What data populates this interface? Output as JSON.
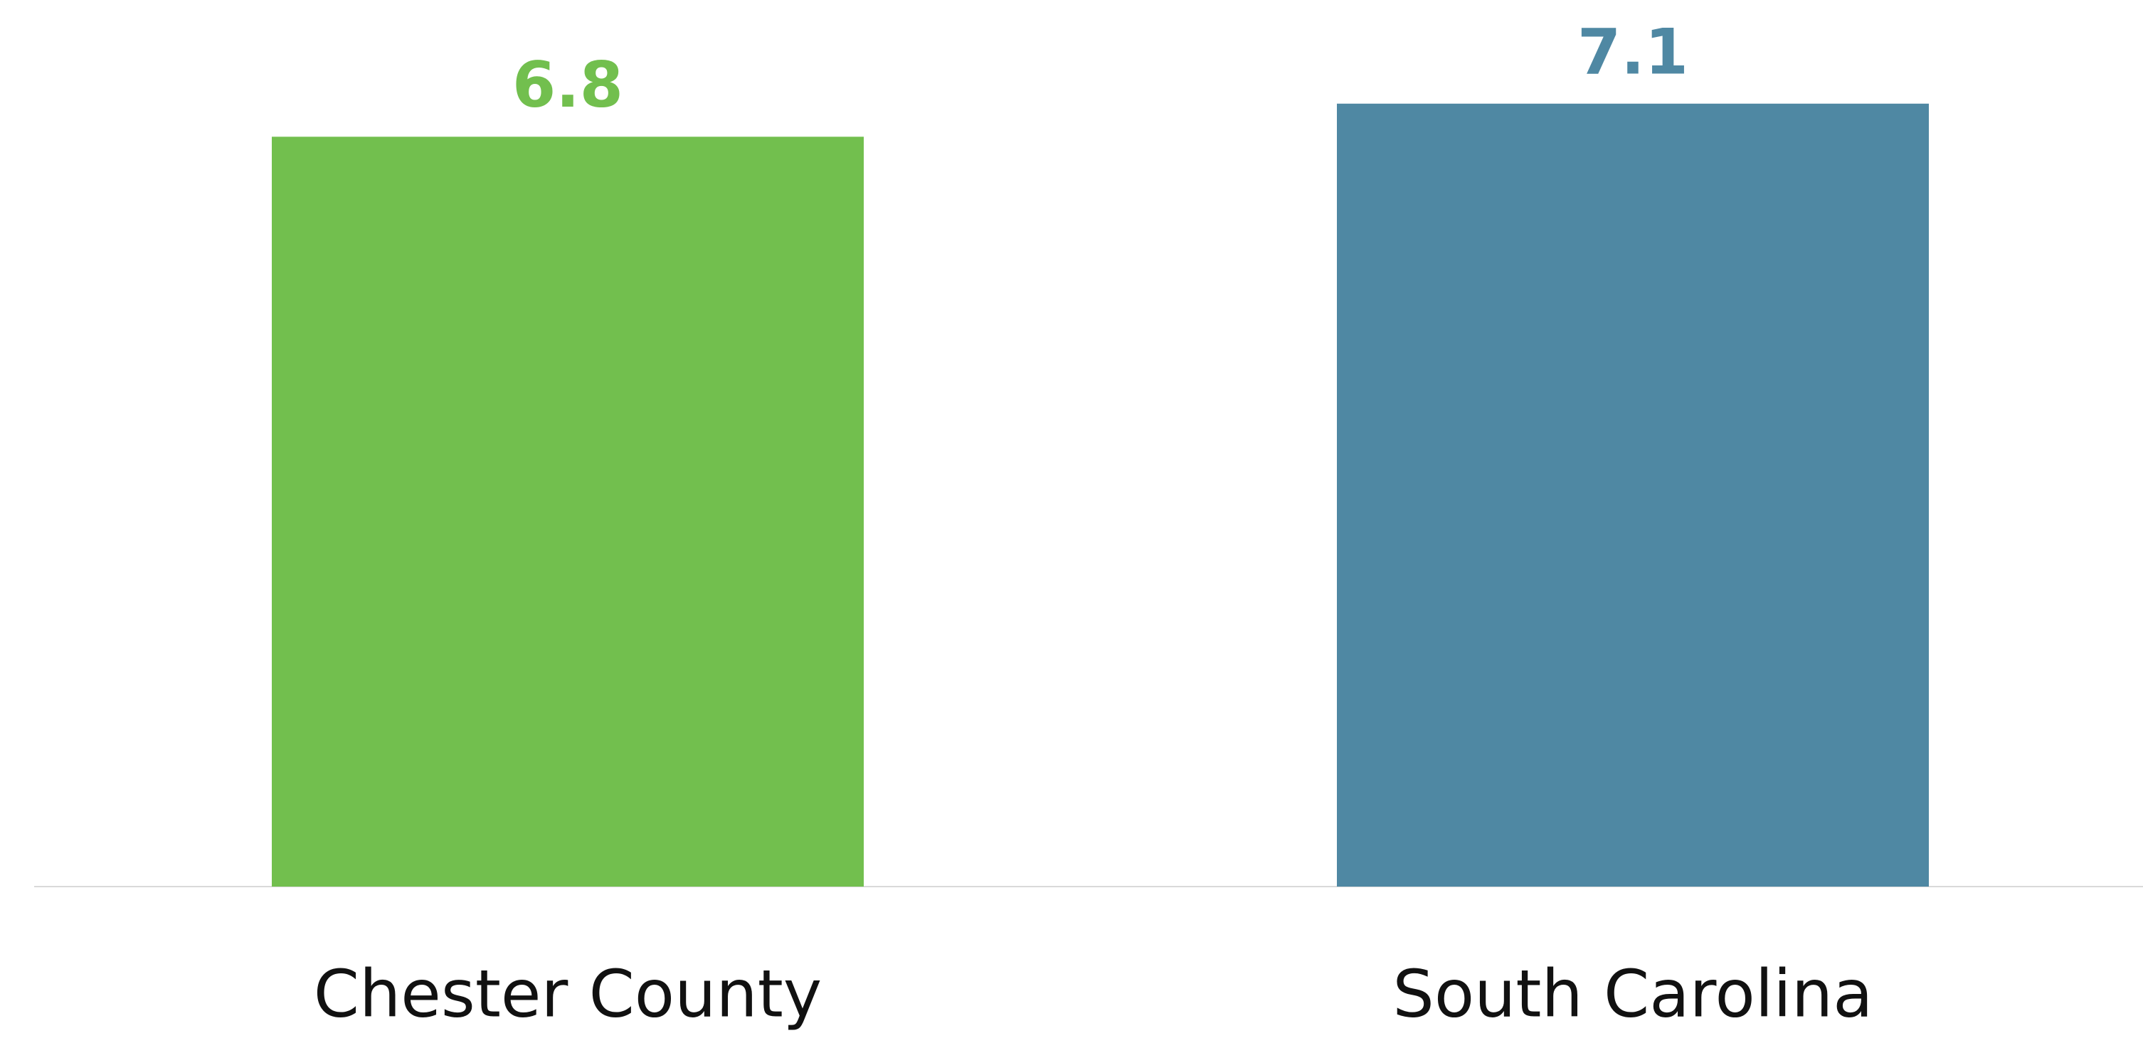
{
  "chart_data": {
    "type": "bar",
    "categories": [
      "Chester County",
      "South Carolina"
    ],
    "values": [
      6.8,
      7.1
    ],
    "colors": [
      "#72bf4e",
      "#4f88a3"
    ],
    "data_labels": true
  }
}
